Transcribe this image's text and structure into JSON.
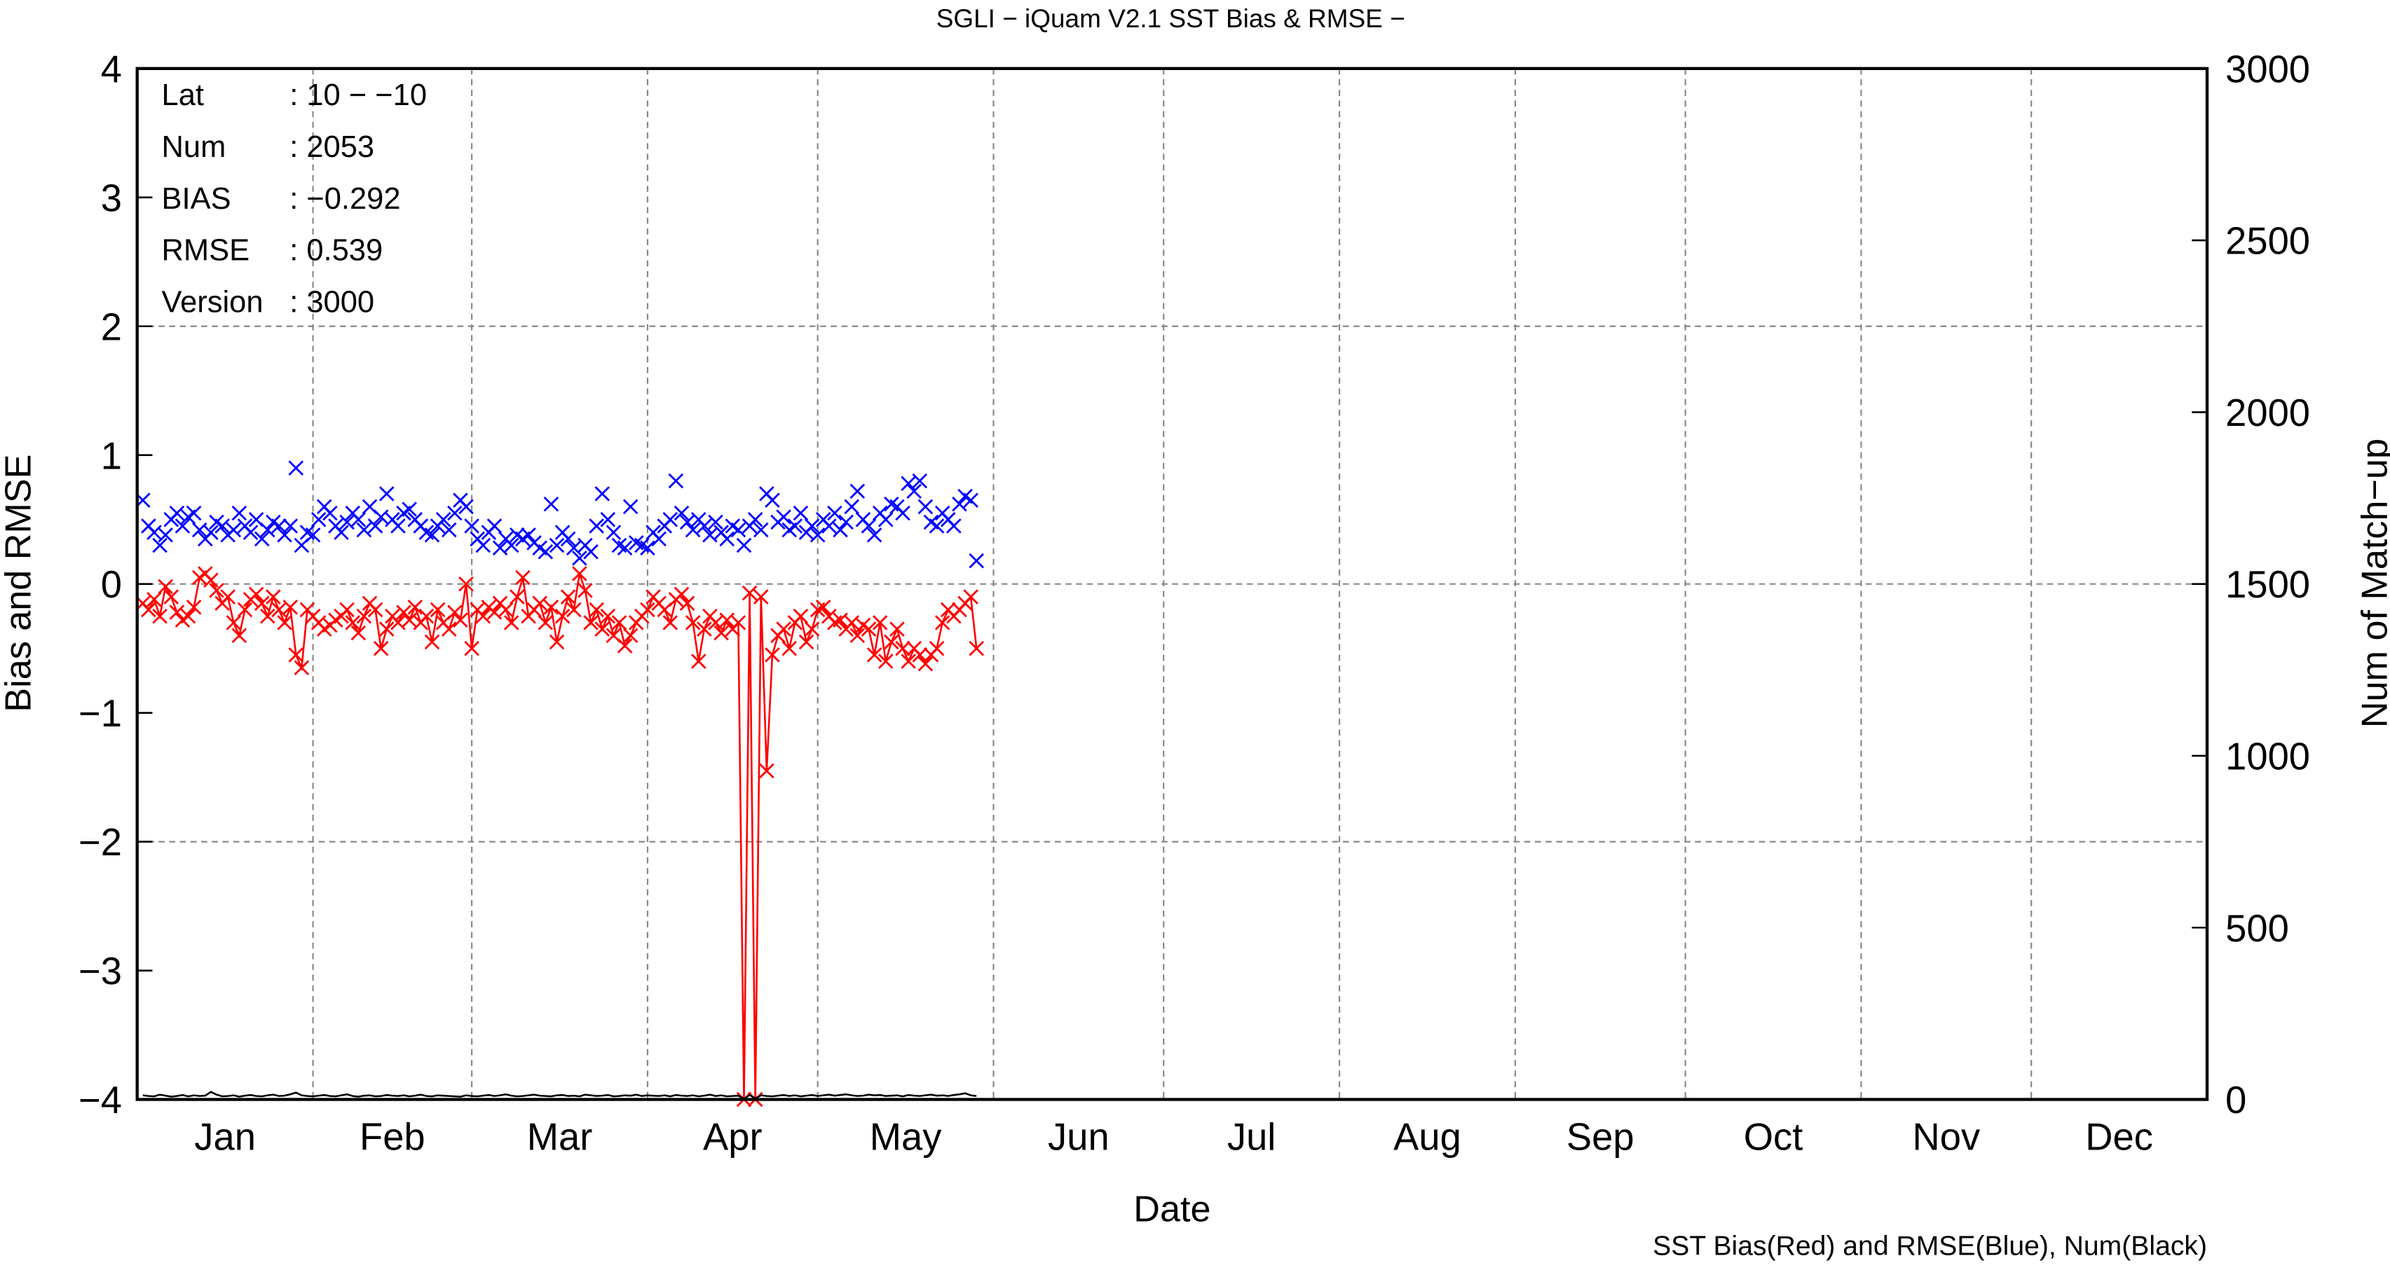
{
  "chart_data": {
    "type": "line",
    "title": "SGLI − iQuam V2.1 SST Bias & RMSE  −",
    "xlabel": "Date",
    "ylabel": "Bias and RMSE",
    "y2label": "Num of Match−up",
    "footnote": "SST Bias(Red) and RMSE(Blue), Num(Black)",
    "annotations": [
      [
        "Lat",
        ": 10 − −10"
      ],
      [
        "Num",
        ": 2053"
      ],
      [
        "BIAS",
        ": −0.292"
      ],
      [
        "RMSE",
        ": 0.539"
      ],
      [
        "Version",
        ": 3000"
      ]
    ],
    "x": [
      1,
      2,
      3,
      4,
      5,
      6,
      7,
      8,
      9,
      10,
      11,
      12,
      13,
      14,
      15,
      16,
      17,
      18,
      19,
      20,
      21,
      22,
      23,
      24,
      25,
      26,
      27,
      28,
      29,
      30,
      31,
      32,
      33,
      34,
      35,
      36,
      37,
      38,
      39,
      40,
      41,
      42,
      43,
      44,
      45,
      46,
      47,
      48,
      49,
      50,
      51,
      52,
      53,
      54,
      55,
      56,
      57,
      58,
      59,
      60,
      61,
      62,
      63,
      64,
      65,
      66,
      67,
      68,
      69,
      70,
      71,
      72,
      73,
      74,
      75,
      76,
      77,
      78,
      79,
      80,
      81,
      82,
      83,
      84,
      85,
      86,
      87,
      88,
      89,
      90,
      91,
      92,
      93,
      94,
      95,
      96,
      97,
      98,
      99,
      100,
      101,
      102,
      103,
      104,
      105,
      106,
      107,
      108,
      109,
      110,
      111,
      112,
      113,
      114,
      115,
      116,
      117,
      118,
      119,
      120,
      121,
      122,
      123,
      124,
      125,
      126,
      127,
      128,
      129,
      130,
      131,
      132,
      133,
      134,
      135,
      136,
      137,
      138,
      139,
      140,
      141,
      142,
      143,
      144,
      145,
      146,
      147,
      148
    ],
    "series": [
      {
        "color": "#ff0000",
        "line": true,
        "marker": "x",
        "axis": "y",
        "values": [
          -0.15,
          -0.2,
          -0.12,
          -0.25,
          -0.02,
          -0.1,
          -0.22,
          -0.28,
          -0.25,
          -0.18,
          0.05,
          0.08,
          0.03,
          -0.05,
          -0.15,
          -0.1,
          -0.3,
          -0.4,
          -0.2,
          -0.12,
          -0.08,
          -0.15,
          -0.25,
          -0.1,
          -0.2,
          -0.3,
          -0.18,
          -0.55,
          -0.65,
          -0.2,
          -0.25,
          -0.3,
          -0.35,
          -0.32,
          -0.28,
          -0.25,
          -0.2,
          -0.3,
          -0.38,
          -0.25,
          -0.15,
          -0.2,
          -0.5,
          -0.35,
          -0.25,
          -0.3,
          -0.22,
          -0.28,
          -0.18,
          -0.3,
          -0.25,
          -0.45,
          -0.2,
          -0.3,
          -0.35,
          -0.22,
          -0.28,
          0.0,
          -0.5,
          -0.2,
          -0.25,
          -0.18,
          -0.22,
          -0.15,
          -0.2,
          -0.3,
          -0.1,
          0.05,
          -0.25,
          -0.2,
          -0.15,
          -0.3,
          -0.18,
          -0.45,
          -0.25,
          -0.1,
          -0.2,
          0.08,
          -0.05,
          -0.3,
          -0.2,
          -0.35,
          -0.25,
          -0.4,
          -0.3,
          -0.48,
          -0.4,
          -0.3,
          -0.25,
          -0.2,
          -0.1,
          -0.15,
          -0.2,
          -0.3,
          -0.12,
          -0.08,
          -0.15,
          -0.3,
          -0.6,
          -0.35,
          -0.25,
          -0.3,
          -0.38,
          -0.28,
          -0.35,
          -0.3,
          -4,
          -0.07,
          -4,
          -0.1,
          -1.45,
          -0.55,
          -0.4,
          -0.35,
          -0.5,
          -0.3,
          -0.25,
          -0.45,
          -0.35,
          -0.2,
          -0.18,
          -0.25,
          -0.3,
          -0.28,
          -0.35,
          -0.3,
          -0.4,
          -0.32,
          -0.35,
          -0.55,
          -0.3,
          -0.6,
          -0.45,
          -0.35,
          -0.5,
          -0.6,
          -0.5,
          -0.55,
          -0.62,
          -0.55,
          -0.5,
          -0.3,
          -0.2,
          -0.25,
          -0.2,
          -0.15,
          -0.1,
          -0.5
        ]
      },
      {
        "color": "#0000ff",
        "line": false,
        "marker": "x",
        "axis": "y",
        "values": [
          0.65,
          0.45,
          0.4,
          0.3,
          0.38,
          0.5,
          0.55,
          0.45,
          0.52,
          0.55,
          0.42,
          0.35,
          0.4,
          0.48,
          0.45,
          0.38,
          0.42,
          0.55,
          0.45,
          0.4,
          0.5,
          0.35,
          0.42,
          0.48,
          0.45,
          0.38,
          0.45,
          0.9,
          0.3,
          0.4,
          0.38,
          0.5,
          0.6,
          0.55,
          0.45,
          0.4,
          0.48,
          0.55,
          0.5,
          0.42,
          0.6,
          0.45,
          0.52,
          0.7,
          0.5,
          0.45,
          0.55,
          0.58,
          0.5,
          0.45,
          0.4,
          0.38,
          0.45,
          0.5,
          0.42,
          0.55,
          0.65,
          0.6,
          0.45,
          0.35,
          0.3,
          0.4,
          0.45,
          0.28,
          0.35,
          0.3,
          0.38,
          0.35,
          0.38,
          0.32,
          0.28,
          0.25,
          0.62,
          0.3,
          0.4,
          0.35,
          0.28,
          0.2,
          0.3,
          0.25,
          0.45,
          0.7,
          0.5,
          0.4,
          0.3,
          0.28,
          0.6,
          0.32,
          0.3,
          0.28,
          0.4,
          0.35,
          0.45,
          0.5,
          0.8,
          0.55,
          0.48,
          0.42,
          0.5,
          0.45,
          0.38,
          0.48,
          0.4,
          0.35,
          0.45,
          0.42,
          0.3,
          0.45,
          0.5,
          0.42,
          0.7,
          0.65,
          0.48,
          0.52,
          0.42,
          0.45,
          0.55,
          0.4,
          0.45,
          0.38,
          0.5,
          0.45,
          0.55,
          0.42,
          0.48,
          0.6,
          0.72,
          0.5,
          0.45,
          0.38,
          0.55,
          0.5,
          0.62,
          0.6,
          0.55,
          0.78,
          0.72,
          0.8,
          0.6,
          0.48,
          0.45,
          0.55,
          0.5,
          0.45,
          0.62,
          0.68,
          0.65,
          0.18
        ]
      },
      {
        "color": "#000000",
        "line": true,
        "marker": "none",
        "axis": "y2",
        "values": [
          12,
          10,
          9,
          14,
          11,
          8,
          10,
          13,
          9,
          12,
          10,
          11,
          22,
          14,
          9,
          10,
          12,
          8,
          11,
          13,
          10,
          9,
          12,
          14,
          10,
          11,
          15,
          20,
          12,
          10,
          9,
          11,
          13,
          10,
          9,
          12,
          15,
          10,
          8,
          11,
          12,
          9,
          10,
          13,
          11,
          10,
          12,
          9,
          11,
          14,
          10,
          9,
          12,
          11,
          10,
          9,
          8,
          12,
          10,
          9,
          11,
          13,
          10,
          12,
          15,
          11,
          9,
          10,
          12,
          14,
          11,
          10,
          9,
          12,
          13,
          10,
          11,
          9,
          14,
          12,
          10,
          11,
          13,
          9,
          10,
          12,
          11,
          14,
          10,
          12,
          11,
          10,
          12,
          9,
          13,
          11,
          10,
          12,
          9,
          11,
          14,
          10,
          12,
          9,
          10,
          11,
          2,
          13,
          3,
          12,
          10,
          9,
          11,
          13,
          10,
          12,
          9,
          11,
          13,
          10,
          12,
          14,
          11,
          13,
          15,
          12,
          10,
          11,
          14,
          12,
          13,
          10,
          11,
          12,
          9,
          13,
          11,
          10,
          12,
          14,
          11,
          12,
          10,
          13,
          15,
          18,
          12,
          10
        ]
      }
    ],
    "xlim": [
      0,
      365
    ],
    "xticks": [
      {
        "value": 15.5,
        "label": "Jan"
      },
      {
        "value": 45,
        "label": "Feb"
      },
      {
        "value": 74.5,
        "label": "Mar"
      },
      {
        "value": 105,
        "label": "Apr"
      },
      {
        "value": 135.5,
        "label": "May"
      },
      {
        "value": 166,
        "label": "Jun"
      },
      {
        "value": 196.5,
        "label": "Jul"
      },
      {
        "value": 227.5,
        "label": "Aug"
      },
      {
        "value": 258,
        "label": "Sep"
      },
      {
        "value": 288.5,
        "label": "Oct"
      },
      {
        "value": 319,
        "label": "Nov"
      },
      {
        "value": 349.5,
        "label": "Dec"
      }
    ],
    "xgrid": [
      31,
      59,
      90,
      120,
      151,
      181,
      212,
      243,
      273,
      304,
      334
    ],
    "ylim": [
      -4,
      4
    ],
    "yticks": [
      {
        "value": -4,
        "label": "−4"
      },
      {
        "value": -3,
        "label": "−3"
      },
      {
        "value": -2,
        "label": "−2"
      },
      {
        "value": -1,
        "label": "−1"
      },
      0,
      1,
      2,
      3,
      4
    ],
    "ygrid": [
      -2,
      0,
      2
    ],
    "y2lim": [
      0,
      3000
    ],
    "y2ticks": [
      0,
      500,
      1000,
      1500,
      2000,
      2500,
      3000
    ],
    "grid": true
  }
}
